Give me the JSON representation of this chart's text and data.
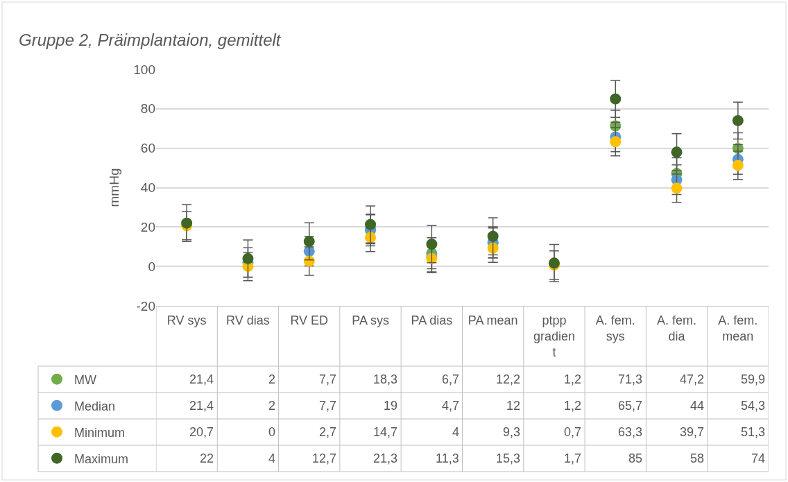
{
  "chart_data": {
    "type": "scatter",
    "title": "Gruppe 2, Präimplantaion, gemittelt",
    "ylabel": "mmHg",
    "categories": [
      "RV sys",
      "RV dias",
      "RV ED",
      "PA sys",
      "PA dias",
      "PA mean",
      "ptpp gradient",
      "A. fem. sys",
      "A. fem. dia",
      "A. fem. mean"
    ],
    "ylim": [
      -20,
      100
    ],
    "yticks": [
      -20,
      0,
      20,
      40,
      60,
      80,
      100
    ],
    "grid": "y",
    "marker": "circle",
    "legend": "bottom left",
    "series": [
      {
        "name": "MW",
        "color": "#70ad47",
        "values": [
          null,
          null,
          null,
          18.3,
          6.7,
          12.2,
          null,
          71.3,
          47.2,
          59.9
        ],
        "errors": [
          null,
          null,
          null,
          7.9,
          7.9,
          7.9,
          null,
          7.9,
          7.9,
          7.9
        ],
        "value_labels": [
          "21,4",
          "2",
          "7,7",
          "18,3",
          "6,7",
          "12,2",
          "1,2",
          "71,3",
          "47,2",
          "59,9"
        ]
      },
      {
        "name": "Median",
        "color": "#5b9bd5",
        "values": [
          null,
          2,
          7.7,
          19,
          4.7,
          12,
          null,
          65.7,
          44,
          54.3
        ],
        "errors": [
          null,
          7.5,
          7.5,
          7.5,
          7.5,
          7.5,
          null,
          7.5,
          7.5,
          7.5
        ],
        "value_labels": [
          "21,4",
          "2",
          "7,7",
          "19",
          "4,7",
          "12",
          "1,2",
          "65,7",
          "44",
          "54,3"
        ]
      },
      {
        "name": "Minimum",
        "color": "#ffc000",
        "values": [
          20.7,
          0,
          2.7,
          14.7,
          4,
          9.3,
          0.7,
          63.3,
          39.7,
          51.3
        ],
        "errors": [
          7.2,
          7.2,
          7.2,
          7.2,
          7.2,
          7.2,
          7.2,
          7.2,
          7.2,
          7.2
        ],
        "value_labels": [
          "20,7",
          "0",
          "2,7",
          "14,7",
          "4",
          "9,3",
          "0,7",
          "63,3",
          "39,7",
          "51,3"
        ]
      },
      {
        "name": "Maximum",
        "color": "#3f6527",
        "values": [
          22,
          4,
          12.7,
          21.3,
          11.3,
          15.3,
          1.7,
          85,
          58,
          74
        ],
        "errors": [
          9.4,
          9.4,
          9.4,
          9.4,
          9.4,
          9.4,
          9.4,
          9.4,
          9.4,
          9.4
        ],
        "value_labels": [
          "22",
          "4",
          "12,7",
          "21,3",
          "11,3",
          "15,3",
          "1,7",
          "85",
          "58",
          "74"
        ]
      }
    ]
  }
}
